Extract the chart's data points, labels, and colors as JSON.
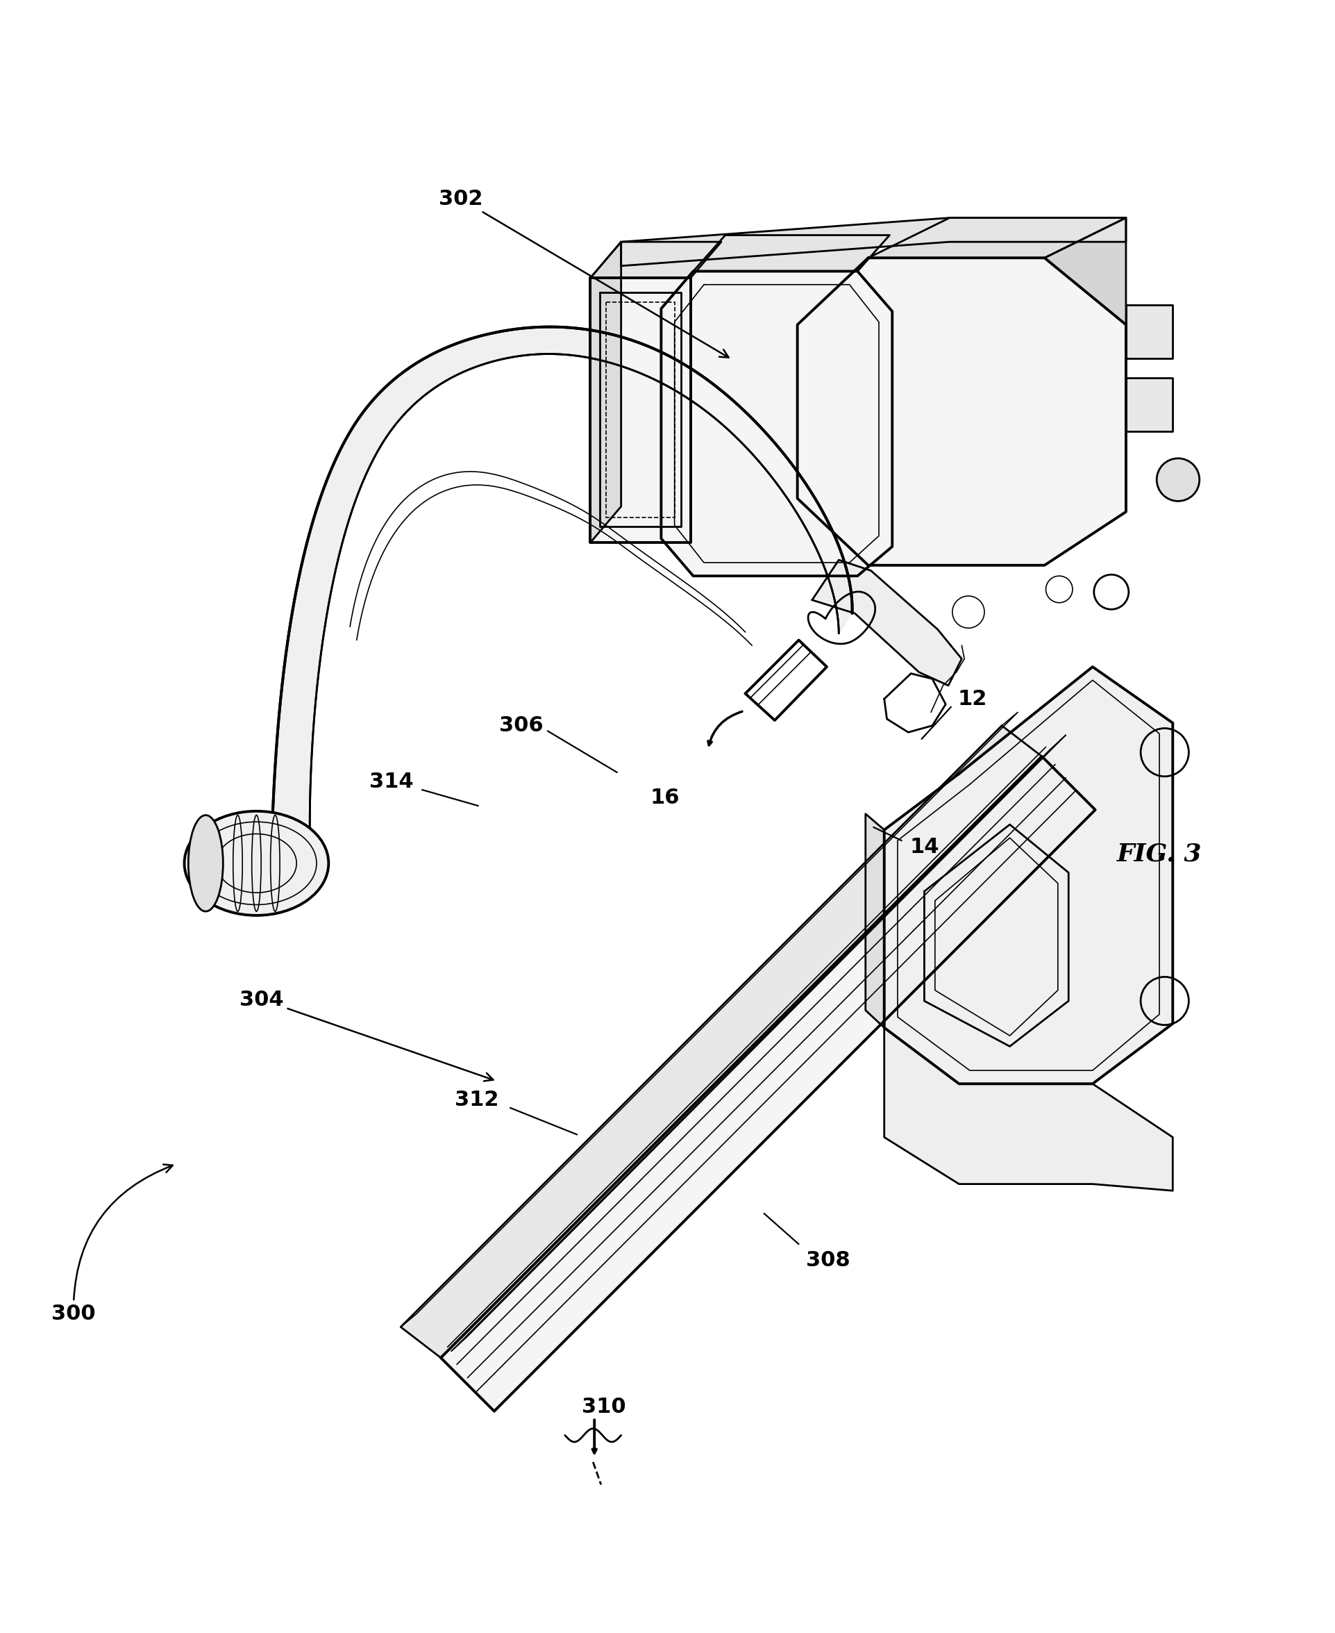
{
  "fig_label": "FIG. 3",
  "bg_color": "#ffffff",
  "line_color": "#000000",
  "lw_main": 2.0,
  "lw_thin": 1.2,
  "lw_thick": 2.8,
  "label_fontsize": 22,
  "fig_label_fontsize": 26
}
